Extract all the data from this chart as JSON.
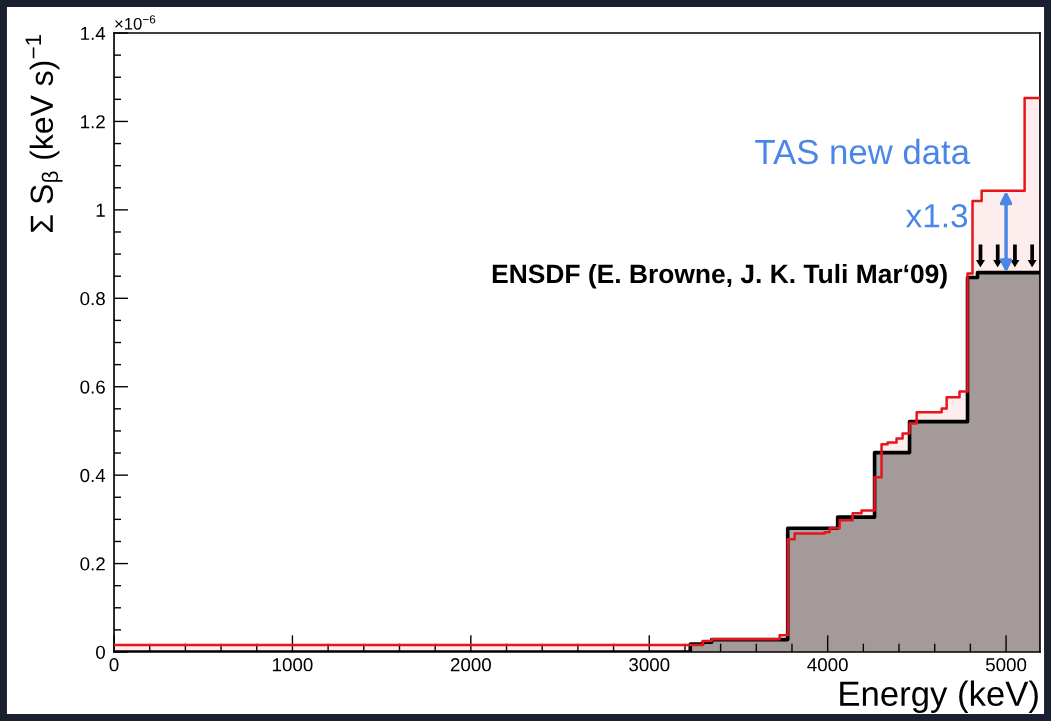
{
  "chart_data": {
    "type": "area",
    "xlabel": "Energy (keV)",
    "ylabel": "Σ S$_{β}$ (keV s)$^{−1}$",
    "xlim": [
      0,
      5190
    ],
    "ylim": [
      0,
      1.4
    ],
    "xticks": [
      0,
      1000,
      2000,
      3000,
      4000,
      5000
    ],
    "yticks": [
      0,
      0.2,
      0.4,
      0.6,
      0.8,
      1,
      1.2,
      1.4
    ],
    "annotations": [
      "×10$^{−6}$",
      "TAS new data",
      {
        "text": "x1.3",
        "x": 5000,
        "y": 1.043
      },
      {
        "text": "ENSDF (E. Browne, J. K. Tuli Mar‘09)",
        "x": 4784,
        "y": 0.85
      }
    ],
    "series": [
      {
        "color": "#e8141b",
        "x": [
          0,
          3300,
          3300,
          3350,
          3350,
          3731,
          3731,
          3776,
          3776,
          3815,
          3815,
          3983,
          3983,
          4011,
          4011,
          4067,
          4067,
          4140,
          4140,
          4190,
          4190,
          4263,
          4263,
          4302,
          4302,
          4336,
          4336,
          4386,
          4386,
          4420,
          4420,
          4459,
          4459,
          4499,
          4499,
          4639,
          4639,
          4667,
          4667,
          4739,
          4739,
          4784,
          4784,
          4812,
          4812,
          4863,
          4863,
          5104,
          5104,
          5190
        ],
        "values": [
          0.016,
          0.016,
          0.025,
          0.025,
          0.029,
          0.029,
          0.038,
          0.038,
          0.255,
          0.255,
          0.268,
          0.268,
          0.271,
          0.271,
          0.28,
          0.28,
          0.298,
          0.298,
          0.314,
          0.314,
          0.32,
          0.32,
          0.395,
          0.395,
          0.47,
          0.47,
          0.474,
          0.474,
          0.483,
          0.483,
          0.494,
          0.494,
          0.517,
          0.517,
          0.542,
          0.542,
          0.551,
          0.551,
          0.576,
          0.576,
          0.589,
          0.589,
          0.856,
          0.856,
          1.02,
          1.02,
          1.043,
          1.043,
          1.253,
          1.253
        ]
      },
      {
        "color": "#000000",
        "x": [
          0,
          3230,
          3230,
          3300,
          3300,
          3350,
          3350,
          3776,
          3776,
          4056,
          4056,
          4263,
          4263,
          4459,
          4459,
          4784,
          4784,
          4840,
          4840,
          5190
        ],
        "values": [
          0,
          0,
          0.018,
          0.018,
          0.022,
          0.022,
          0.028,
          0.028,
          0.28,
          0.28,
          0.305,
          0.305,
          0.451,
          0.451,
          0.521,
          0.521,
          0.847,
          0.847,
          0.858,
          0.858
        ]
      }
    ]
  }
}
